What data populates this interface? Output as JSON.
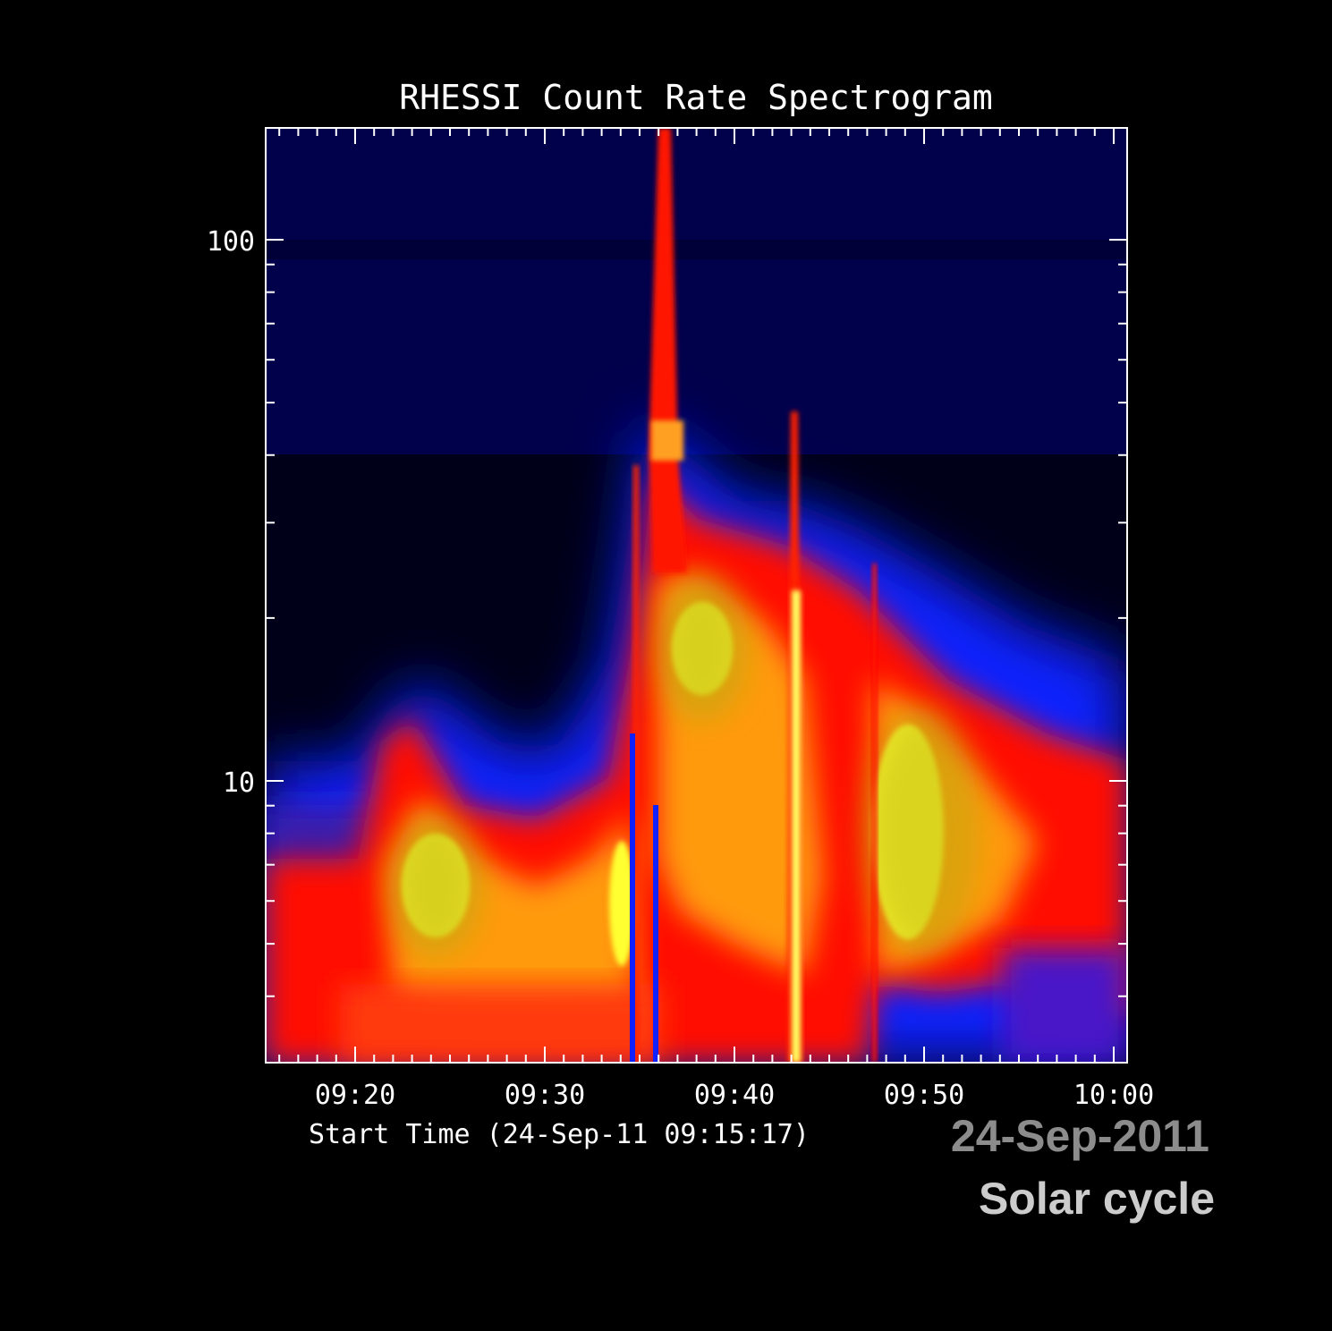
{
  "chart_data": {
    "type": "heatmap",
    "title": "RHESSI Count Rate Spectrogram",
    "xlabel": "Start Time (24-Sep-11 09:15:17)",
    "ylabel": "",
    "x_ticks": [
      "09:20",
      "09:30",
      "09:40",
      "09:50",
      "10:00"
    ],
    "y_ticks": [
      "100",
      "10"
    ],
    "y_scale": "log",
    "y_range": [
      3,
      160
    ],
    "x_range": [
      "09:15:17",
      "10:00:30"
    ],
    "colormap": [
      "#000010",
      "#00004a",
      "#0010ff",
      "#ff0000",
      "#ff9900",
      "#ffff30"
    ],
    "features": [
      {
        "type": "flare",
        "peak_time": "09:24",
        "peak_energy": 7,
        "intensity": "yellow"
      },
      {
        "type": "burst",
        "time": "09:34:30",
        "intensity": "yellow"
      },
      {
        "type": "impulsive spike",
        "time": "09:36",
        "max_energy": 160
      },
      {
        "type": "flare",
        "peak_time": "09:38",
        "peak_energy": 16,
        "intensity": "yellow"
      },
      {
        "type": "spike",
        "time": "09:43",
        "intensity": "bright yellow"
      },
      {
        "type": "flare",
        "peak_time": "09:50",
        "peak_energy": 8,
        "intensity": "yellow"
      }
    ]
  },
  "watermark": {
    "date": "24-Sep-2011",
    "caption": "Solar cycle"
  },
  "colors": {
    "background": "#000000",
    "axes": "#ffffff",
    "watermark_date": "#8c8c8c",
    "watermark_caption": "#cccccc"
  }
}
